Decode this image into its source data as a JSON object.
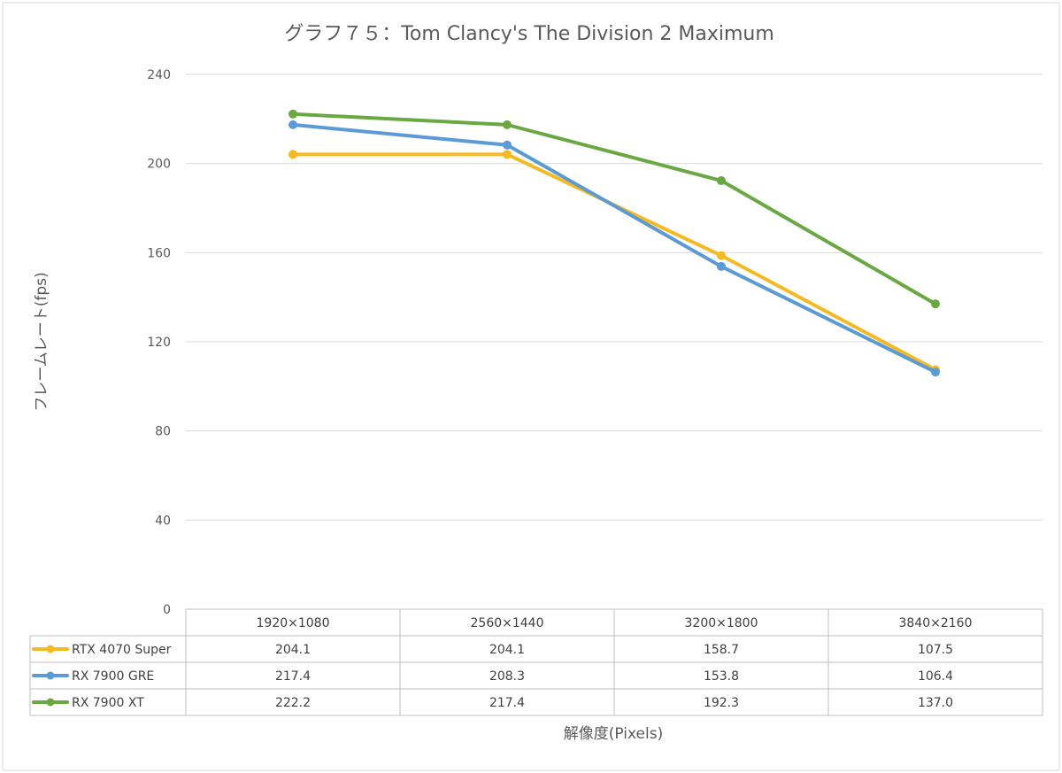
{
  "chart_data": {
    "type": "line",
    "title": "グラフ７５：Tom Clancy's The Division 2 Maximum",
    "xlabel": "解像度(Pixels)",
    "ylabel": "フレームレート(fps)",
    "ylim": [
      0,
      240
    ],
    "yticks": [
      0,
      40,
      80,
      120,
      160,
      200,
      240
    ],
    "ytick_labels": [
      "0",
      "40",
      "80",
      "120",
      "160",
      "200",
      "240"
    ],
    "grid": true,
    "legend": "data-table",
    "categories": [
      "1920×1080",
      "2560×1440",
      "3200×1800",
      "3840×2160"
    ],
    "series": [
      {
        "name": "RTX 4070 Super",
        "color": "#f5b921",
        "values": [
          204.1,
          204.1,
          158.7,
          107.5
        ],
        "labels": [
          "204.1",
          "204.1",
          "158.7",
          "107.5"
        ]
      },
      {
        "name": "RX 7900 GRE",
        "color": "#5b9bd5",
        "values": [
          217.4,
          208.3,
          153.8,
          106.4
        ],
        "labels": [
          "217.4",
          "208.3",
          "153.8",
          "106.4"
        ]
      },
      {
        "name": "RX 7900 XT",
        "color": "#6aa842",
        "values": [
          222.2,
          217.4,
          192.3,
          137.0
        ],
        "labels": [
          "222.2",
          "217.4",
          "192.3",
          "137.0"
        ]
      }
    ]
  }
}
